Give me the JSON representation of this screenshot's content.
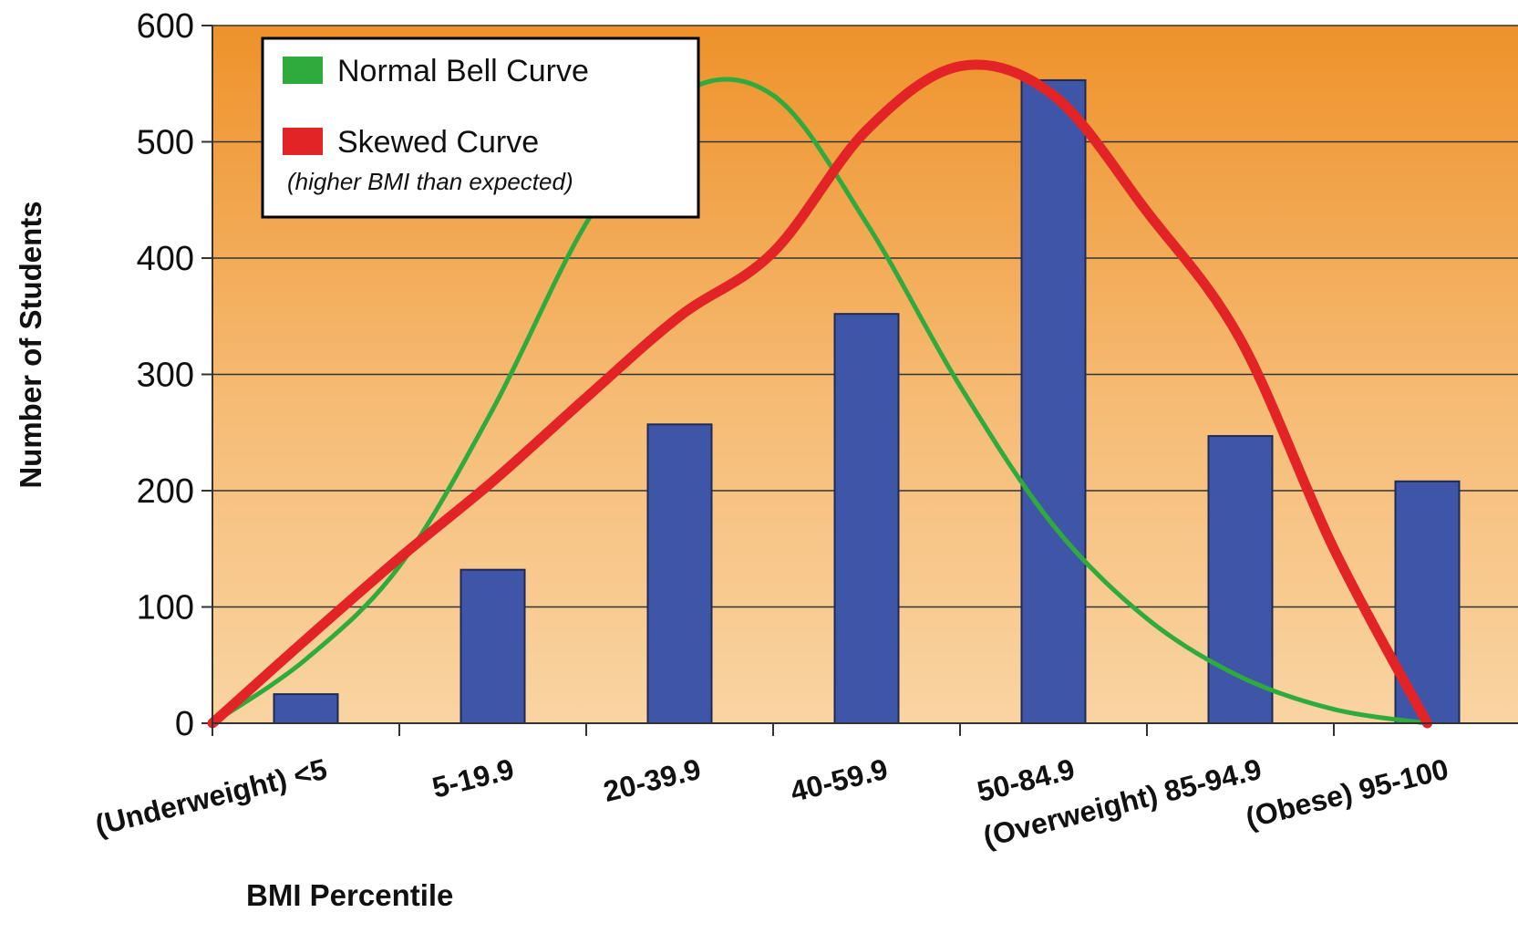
{
  "chart_data": {
    "type": "bar",
    "title": "",
    "xlabel": "BMI Percentile",
    "ylabel": "Number of Students",
    "ylim": [
      0,
      600
    ],
    "yticks": [
      "0",
      "100",
      "200",
      "300",
      "400",
      "500",
      "600"
    ],
    "grid": true,
    "legend_position": "top-left",
    "categories": [
      "(Underweight) <5",
      "5-19.9",
      "20-39.9",
      "40-59.9",
      "50-84.9",
      "(Overweight) 85-94.9",
      "(Obese) 95-100"
    ],
    "values": [
      25,
      132,
      257,
      352,
      553,
      247,
      208
    ],
    "bar_color": "#3f56a8",
    "series": [
      {
        "name": "Normal Bell Curve",
        "color": "#2eab3c",
        "type": "line",
        "x": [
          0.0,
          0.5,
          1.0,
          1.5,
          2.0,
          2.5,
          3.0,
          3.5,
          4.0,
          4.5,
          5.0,
          5.5,
          6.0,
          6.5
        ],
        "y": [
          0,
          55,
          135,
          270,
          430,
          540,
          540,
          430,
          290,
          170,
          90,
          40,
          12,
          0
        ]
      },
      {
        "name": "Skewed Curve",
        "note": "(higher BMI than expected)",
        "color": "#e32427",
        "type": "line",
        "x": [
          0.0,
          0.5,
          1.0,
          1.5,
          2.0,
          2.5,
          3.0,
          3.5,
          4.0,
          4.5,
          5.0,
          5.5,
          6.0,
          6.5
        ],
        "y": [
          0,
          72,
          142,
          208,
          280,
          350,
          405,
          510,
          565,
          540,
          440,
          330,
          150,
          0
        ]
      }
    ]
  }
}
